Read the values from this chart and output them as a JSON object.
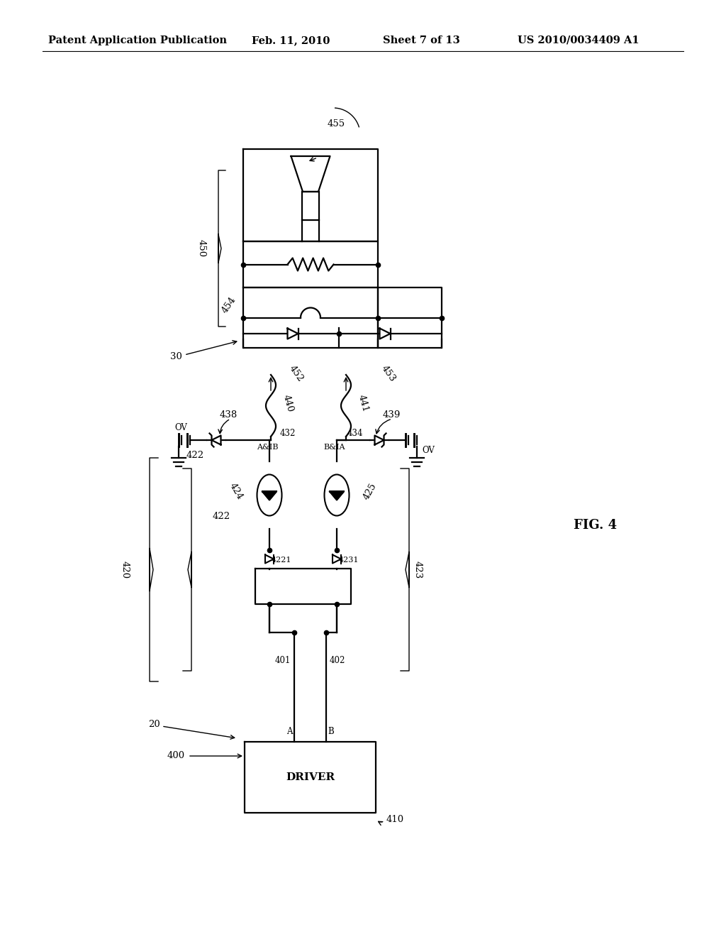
{
  "title": "Patent Application Publication",
  "date": "Feb. 11, 2010",
  "sheet": "Sheet 7 of 13",
  "patent_num": "US 2010/0034409 A1",
  "fig_label": "FIG. 4",
  "bg_color": "#ffffff",
  "line_color": "#000000",
  "header_fontsize": 11,
  "label_fontsize": 9.5,
  "lw": 1.6
}
